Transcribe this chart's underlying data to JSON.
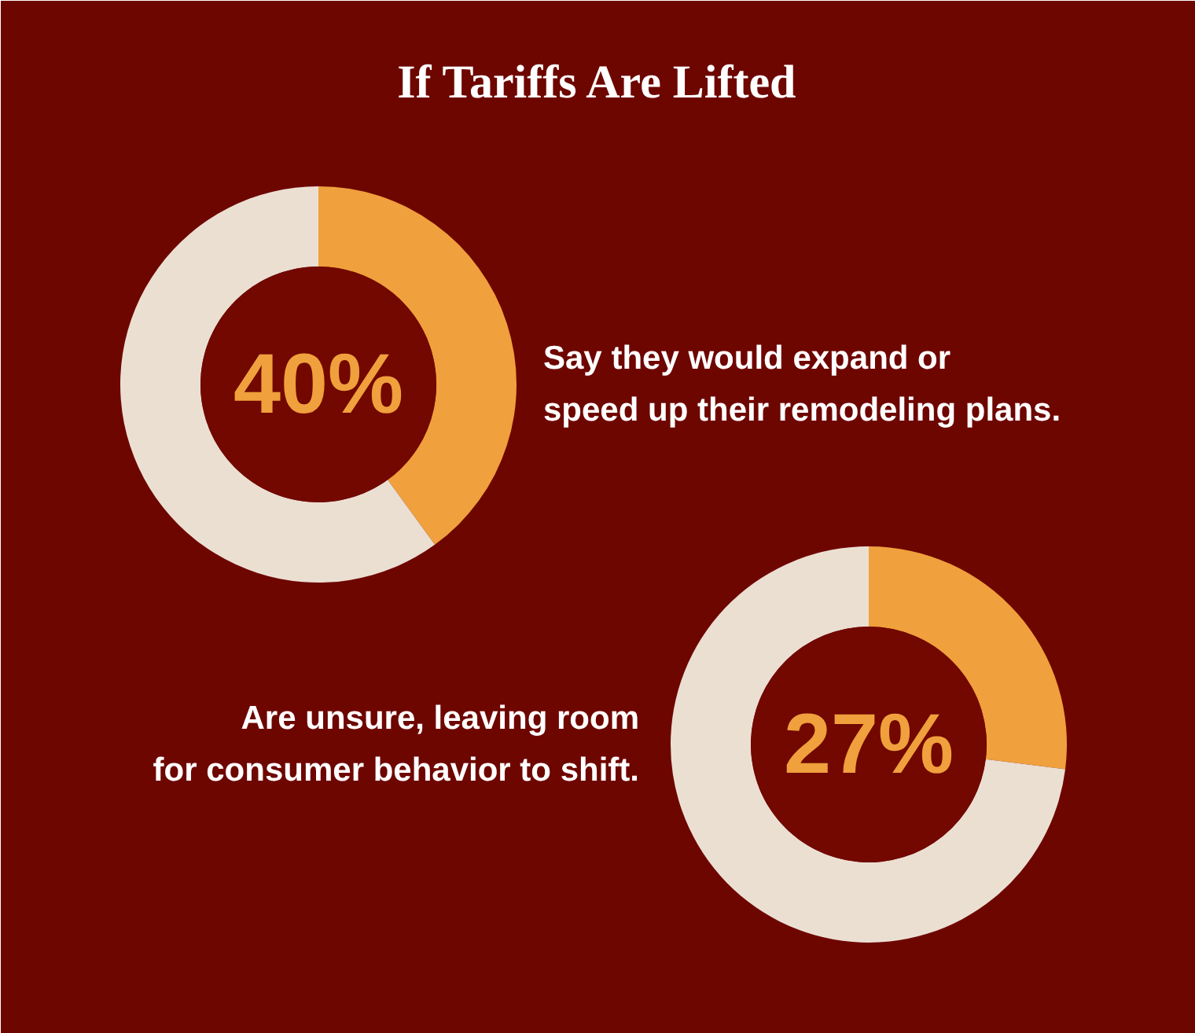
{
  "chart_data": [
    {
      "type": "donut",
      "title": "If Tariffs Are Lifted",
      "categories": [
        null,
        null
      ],
      "values": [
        40,
        60
      ],
      "colors": [
        "#f0a03c",
        "#ebdfd2"
      ],
      "value_labels": [
        "40%",
        null
      ],
      "annotations": [
        "Say they would expand or\nspeed up their remodeling plans."
      ]
    },
    {
      "type": "donut",
      "categories": [
        null,
        null
      ],
      "values": [
        27,
        73
      ],
      "colors": [
        "#f0a03c",
        "#ebdfd2"
      ],
      "value_labels": [
        "27%",
        null
      ],
      "annotations": [
        "Are unsure, leaving room\nfor consumer behavior to shift."
      ]
    }
  ]
}
